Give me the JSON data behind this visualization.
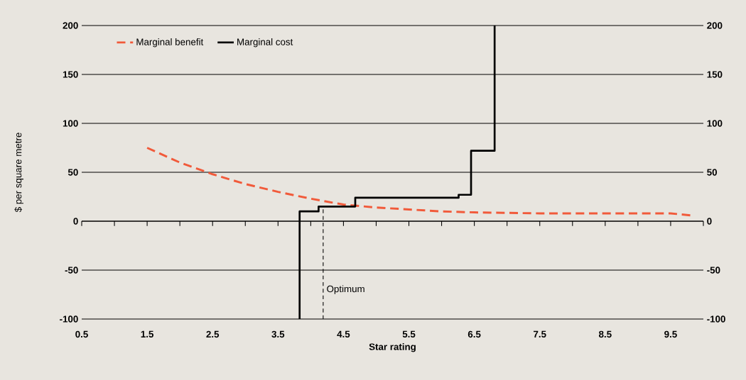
{
  "chart_data": {
    "type": "line",
    "xlabel": "Star rating",
    "ylabel": "$ per square metre",
    "xlim": [
      0.5,
      10
    ],
    "ylim": [
      -100,
      200
    ],
    "y2lim": [
      -100,
      200
    ],
    "xticks": [
      0.5,
      {
        "value": 1,
        "label": null
      },
      1.5,
      {
        "value": 2,
        "label": null
      },
      2.5,
      {
        "value": 3,
        "label": null
      },
      3.5,
      {
        "value": 4,
        "label": null
      },
      4.5,
      {
        "value": 5,
        "label": null
      },
      5.5,
      {
        "value": 6,
        "label": null
      },
      6.5,
      {
        "value": 7,
        "label": null
      },
      7.5,
      {
        "value": 8,
        "label": null
      },
      8.5,
      {
        "value": 9,
        "label": null
      },
      9.5,
      {
        "value": 10,
        "label": null
      }
    ],
    "yticks": [
      -100,
      -50,
      0,
      50,
      100,
      150,
      200
    ],
    "y2ticks": [
      -100,
      -50,
      0,
      50,
      100,
      150,
      200
    ],
    "grid": "y",
    "legend": "top left",
    "series": [
      {
        "name": "Marginal benefit",
        "type": "line",
        "line_style": "dashed",
        "color": "#f15a3a",
        "x": [
          1.5,
          2,
          2.5,
          3,
          3.5,
          4,
          4.5,
          5,
          5.5,
          6,
          6.5,
          7.5,
          8.5,
          9.5,
          9.8
        ],
        "values": [
          75,
          60,
          48,
          38,
          30,
          23,
          17,
          14,
          12,
          10,
          9,
          8,
          8,
          8,
          6
        ]
      },
      {
        "name": "Marginal cost",
        "type": "step",
        "line_style": "solid",
        "color": "#000000",
        "x": [
          3.83,
          3.83,
          4.12,
          4.68,
          6.26,
          6.45,
          6.81
        ],
        "values": [
          -100,
          10,
          15,
          24,
          27,
          72,
          200
        ]
      }
    ],
    "ref_lines": [
      {
        "axis": "x",
        "value": 4.19,
        "label": "Optimum",
        "line_style": "dashed",
        "color": "#000000"
      }
    ]
  }
}
